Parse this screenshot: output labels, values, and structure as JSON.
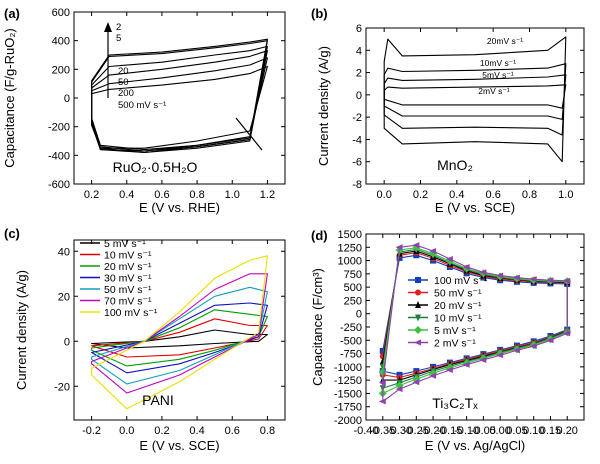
{
  "chart_data": [
    {
      "type": "line",
      "panel_label": "(a)",
      "xlabel": "E (V vs. RHE)",
      "ylabel": "Capacitance (F/g-RuO₂)",
      "xlim": [
        0.1,
        1.3
      ],
      "ylim": [
        -600,
        600
      ],
      "xticks": [
        0.2,
        0.4,
        0.6,
        0.8,
        1.0,
        1.2
      ],
      "yticks": [
        -600,
        -400,
        -200,
        0,
        200,
        400,
        600
      ],
      "annotation": "RuO₂·0.5H₂O",
      "scan_rate_labels": [
        "2",
        "5",
        "20",
        "50",
        "200",
        "500 mV s⁻¹"
      ],
      "series": [
        {
          "scan_rate": "2",
          "x": [
            0.2,
            0.3,
            0.6,
            0.9,
            1.1,
            1.2,
            1.1,
            0.8,
            0.5,
            0.25,
            0.2
          ],
          "y": [
            120,
            300,
            320,
            360,
            390,
            410,
            -280,
            -330,
            -360,
            -330,
            -140
          ]
        },
        {
          "scan_rate": "5",
          "x": [
            0.2,
            0.3,
            0.6,
            0.9,
            1.1,
            1.2,
            1.1,
            0.8,
            0.5,
            0.25,
            0.2
          ],
          "y": [
            110,
            290,
            310,
            350,
            380,
            400,
            -290,
            -340,
            -370,
            -340,
            -150
          ]
        },
        {
          "scan_rate": "20",
          "x": [
            0.2,
            0.3,
            0.6,
            0.9,
            1.1,
            1.2,
            1.1,
            0.8,
            0.5,
            0.25,
            0.2
          ],
          "y": [
            90,
            220,
            250,
            300,
            330,
            360,
            -300,
            -350,
            -380,
            -350,
            -160
          ]
        },
        {
          "scan_rate": "50",
          "x": [
            0.2,
            0.3,
            0.6,
            0.9,
            1.1,
            1.2,
            1.1,
            0.8,
            0.5,
            0.25,
            0.2
          ],
          "y": [
            70,
            160,
            200,
            250,
            290,
            330,
            -290,
            -340,
            -380,
            -360,
            -170
          ]
        },
        {
          "scan_rate": "200",
          "x": [
            0.2,
            0.3,
            0.6,
            0.9,
            1.1,
            1.2,
            1.1,
            0.8,
            0.5,
            0.25,
            0.2
          ],
          "y": [
            50,
            100,
            140,
            190,
            230,
            280,
            -270,
            -330,
            -370,
            -360,
            -180
          ]
        },
        {
          "scan_rate": "500",
          "x": [
            0.2,
            0.3,
            0.6,
            0.9,
            1.1,
            1.2,
            1.1,
            0.8,
            0.5,
            0.25,
            0.2
          ],
          "y": [
            30,
            60,
            90,
            130,
            170,
            220,
            -230,
            -300,
            -350,
            -350,
            -190
          ]
        }
      ]
    },
    {
      "type": "line",
      "panel_label": "(b)",
      "xlabel": "E (V vs. SCE)",
      "ylabel": "Current density (A/g)",
      "xlim": [
        -0.1,
        1.1
      ],
      "ylim": [
        -8,
        6
      ],
      "xticks": [
        0.0,
        0.2,
        0.4,
        0.6,
        0.8,
        1.0
      ],
      "yticks": [
        -8,
        -6,
        -4,
        -2,
        0,
        2,
        4,
        6
      ],
      "annotation": "MnO₂",
      "series": [
        {
          "name": "20mV s⁻¹",
          "x": [
            0.0,
            0.02,
            0.1,
            0.5,
            0.9,
            1.0,
            0.98,
            0.9,
            0.5,
            0.1,
            0.0
          ],
          "y": [
            3.0,
            5.0,
            3.5,
            3.6,
            4.0,
            5.2,
            -6.0,
            -4.4,
            -4.2,
            -4.4,
            -3.0
          ]
        },
        {
          "name": "10mV s⁻¹",
          "x": [
            0.0,
            0.02,
            0.1,
            0.5,
            0.9,
            1.0,
            0.98,
            0.9,
            0.5,
            0.1,
            0.0
          ],
          "y": [
            1.8,
            2.4,
            2.1,
            2.2,
            2.4,
            2.8,
            -3.6,
            -3.0,
            -2.9,
            -3.0,
            -1.8
          ]
        },
        {
          "name": "5mV s⁻¹",
          "x": [
            0.0,
            0.02,
            0.1,
            0.5,
            0.9,
            1.0,
            0.98,
            0.9,
            0.5,
            0.1,
            0.0
          ],
          "y": [
            1.0,
            1.5,
            1.3,
            1.4,
            1.6,
            1.8,
            -2.2,
            -1.9,
            -1.9,
            -1.9,
            -1.0
          ]
        },
        {
          "name": "2mV s⁻¹",
          "x": [
            0.0,
            0.02,
            0.1,
            0.5,
            0.9,
            1.0,
            0.98,
            0.9,
            0.5,
            0.1,
            0.0
          ],
          "y": [
            0.4,
            0.7,
            0.6,
            0.7,
            0.8,
            0.9,
            -1.2,
            -0.9,
            -0.9,
            -0.9,
            -0.4
          ]
        }
      ]
    },
    {
      "type": "line",
      "panel_label": "(c)",
      "xlabel": "E (V vs. SCE)",
      "ylabel": "Current density (A/g)",
      "xlim": [
        -0.3,
        0.9
      ],
      "ylim": [
        -35,
        45
      ],
      "xticks": [
        -0.2,
        0.0,
        0.2,
        0.4,
        0.6,
        0.8
      ],
      "yticks": [
        -20,
        0,
        20,
        40
      ],
      "annotation": "PANI",
      "series": [
        {
          "name": "5 mV s⁻¹",
          "color": "#000000",
          "x": [
            -0.2,
            0.1,
            0.3,
            0.5,
            0.7,
            0.8,
            0.75,
            0.5,
            0.3,
            0.0,
            -0.2
          ],
          "y": [
            -1,
            0,
            2,
            5,
            3,
            3,
            0,
            -1,
            -2,
            -3,
            -1
          ]
        },
        {
          "name": "10 mV s⁻¹",
          "color": "#e00000",
          "x": [
            -0.2,
            0.1,
            0.3,
            0.5,
            0.7,
            0.8,
            0.75,
            0.5,
            0.3,
            0.0,
            -0.2
          ],
          "y": [
            -2,
            0,
            4,
            10,
            7,
            7,
            1,
            -3,
            -6,
            -7,
            -2
          ]
        },
        {
          "name": "20 mV s⁻¹",
          "color": "#00a000",
          "x": [
            -0.2,
            0.1,
            0.3,
            0.5,
            0.7,
            0.8,
            0.75,
            0.5,
            0.3,
            0.0,
            -0.2
          ],
          "y": [
            -3,
            0,
            6,
            14,
            12,
            11,
            2,
            -4,
            -8,
            -11,
            -4
          ]
        },
        {
          "name": "30 mV s⁻¹",
          "color": "#1010c0",
          "x": [
            -0.2,
            0.1,
            0.3,
            0.5,
            0.7,
            0.8,
            0.75,
            0.5,
            0.3,
            0.0,
            -0.2
          ],
          "y": [
            -5,
            0,
            8,
            16,
            17,
            16,
            2,
            -5,
            -10,
            -14,
            -5
          ]
        },
        {
          "name": "50 mV s⁻¹",
          "color": "#10a0c0",
          "x": [
            -0.2,
            0.1,
            0.3,
            0.5,
            0.7,
            0.8,
            0.75,
            0.5,
            0.3,
            0.0,
            -0.2
          ],
          "y": [
            -7,
            0,
            10,
            20,
            24,
            22,
            3,
            -6,
            -13,
            -19,
            -8
          ]
        },
        {
          "name": "70 mV s⁻¹",
          "color": "#c000c0",
          "x": [
            -0.2,
            0.1,
            0.3,
            0.5,
            0.7,
            0.8,
            0.75,
            0.5,
            0.3,
            0.0,
            -0.2
          ],
          "y": [
            -9,
            0,
            11,
            23,
            30,
            30,
            3,
            -7,
            -15,
            -23,
            -10
          ]
        },
        {
          "name": "100 mV s⁻¹",
          "color": "#e8e000",
          "x": [
            -0.2,
            0.1,
            0.3,
            0.5,
            0.7,
            0.8,
            0.75,
            0.5,
            0.3,
            0.0,
            -0.2
          ],
          "y": [
            -12,
            0,
            13,
            28,
            36,
            38,
            4,
            -8,
            -18,
            -30,
            -15
          ]
        }
      ]
    },
    {
      "type": "line",
      "panel_label": "(d)",
      "xlabel": "E (V vs. Ag/AgCl)",
      "ylabel": "Capacitance (F/cm³)",
      "xlim": [
        -0.4,
        0.25
      ],
      "ylim": [
        -2000,
        1500
      ],
      "xticks": [
        -0.4,
        -0.35,
        -0.3,
        -0.25,
        -0.2,
        -0.15,
        -0.1,
        -0.05,
        0.0,
        0.05,
        0.1,
        0.15,
        0.2
      ],
      "yticks": [
        -2000,
        -1750,
        -1500,
        -1250,
        -1000,
        -750,
        -500,
        -250,
        0,
        250,
        500,
        750,
        1000,
        1250,
        1500
      ],
      "annotation": "Ti₃C₂Tₓ",
      "series": [
        {
          "name": "100 mV s⁻¹",
          "color": "#1040c0",
          "marker": "square",
          "x": [
            -0.35,
            -0.3,
            -0.25,
            -0.2,
            -0.15,
            -0.1,
            -0.05,
            0.0,
            0.05,
            0.1,
            0.15,
            0.2,
            0.2,
            0.15,
            0.1,
            0.05,
            0.0,
            -0.05,
            -0.1,
            -0.15,
            -0.2,
            -0.25,
            -0.3,
            -0.35
          ],
          "y": [
            -700,
            1050,
            1100,
            1000,
            880,
            760,
            680,
            630,
            600,
            580,
            570,
            560,
            -300,
            -420,
            -520,
            -600,
            -680,
            -760,
            -840,
            -920,
            -1000,
            -1080,
            -1150,
            -1080
          ]
        },
        {
          "name": "50 mV s⁻¹",
          "color": "#e02020",
          "marker": "circle",
          "x": [
            -0.35,
            -0.3,
            -0.25,
            -0.2,
            -0.15,
            -0.1,
            -0.05,
            0.0,
            0.05,
            0.1,
            0.15,
            0.2,
            0.2,
            0.15,
            0.1,
            0.05,
            0.0,
            -0.05,
            -0.1,
            -0.15,
            -0.2,
            -0.25,
            -0.3,
            -0.35
          ],
          "y": [
            -800,
            1100,
            1150,
            1040,
            910,
            790,
            700,
            650,
            620,
            600,
            590,
            580,
            -320,
            -440,
            -540,
            -620,
            -700,
            -780,
            -860,
            -940,
            -1030,
            -1120,
            -1200,
            -1150
          ]
        },
        {
          "name": "20 mV s⁻¹",
          "color": "#000000",
          "marker": "triangle-up",
          "x": [
            -0.35,
            -0.3,
            -0.25,
            -0.2,
            -0.15,
            -0.1,
            -0.05,
            0.0,
            0.05,
            0.1,
            0.15,
            0.2,
            0.2,
            0.15,
            0.1,
            0.05,
            0.0,
            -0.05,
            -0.1,
            -0.15,
            -0.2,
            -0.25,
            -0.3,
            -0.35
          ],
          "y": [
            -900,
            1130,
            1180,
            1070,
            940,
            810,
            720,
            670,
            640,
            610,
            600,
            590,
            -330,
            -450,
            -560,
            -640,
            -720,
            -800,
            -880,
            -960,
            -1050,
            -1150,
            -1250,
            -1250
          ]
        },
        {
          "name": "10 mV s⁻¹",
          "color": "#208040",
          "marker": "triangle-down",
          "x": [
            -0.35,
            -0.3,
            -0.25,
            -0.2,
            -0.15,
            -0.1,
            -0.05,
            0.0,
            0.05,
            0.1,
            0.15,
            0.2,
            0.2,
            0.15,
            0.1,
            0.05,
            0.0,
            -0.05,
            -0.1,
            -0.15,
            -0.2,
            -0.25,
            -0.3,
            -0.35
          ],
          "y": [
            -1000,
            1160,
            1210,
            1100,
            960,
            830,
            740,
            680,
            650,
            620,
            610,
            600,
            -340,
            -460,
            -570,
            -650,
            -730,
            -820,
            -900,
            -990,
            -1080,
            -1190,
            -1300,
            -1400
          ]
        },
        {
          "name": "5 mV s⁻¹",
          "color": "#40c040",
          "marker": "diamond",
          "x": [
            -0.35,
            -0.3,
            -0.25,
            -0.2,
            -0.15,
            -0.1,
            -0.05,
            0.0,
            0.05,
            0.1,
            0.15,
            0.2,
            0.2,
            0.15,
            0.1,
            0.05,
            0.0,
            -0.05,
            -0.1,
            -0.15,
            -0.2,
            -0.25,
            -0.3,
            -0.35
          ],
          "y": [
            -1100,
            1200,
            1240,
            1130,
            990,
            850,
            760,
            700,
            660,
            630,
            620,
            610,
            -350,
            -480,
            -590,
            -670,
            -750,
            -840,
            -930,
            -1020,
            -1120,
            -1230,
            -1350,
            -1500
          ]
        },
        {
          "name": "2 mV s⁻¹",
          "color": "#9040b0",
          "marker": "triangle-left",
          "x": [
            -0.35,
            -0.3,
            -0.25,
            -0.2,
            -0.15,
            -0.1,
            -0.05,
            0.0,
            0.05,
            0.1,
            0.15,
            0.2,
            0.2,
            0.15,
            0.1,
            0.05,
            0.0,
            -0.05,
            -0.1,
            -0.15,
            -0.2,
            -0.25,
            -0.3,
            -0.35
          ],
          "y": [
            -1300,
            1250,
            1290,
            1180,
            1030,
            880,
            780,
            720,
            680,
            650,
            630,
            620,
            -370,
            -500,
            -610,
            -690,
            -780,
            -870,
            -960,
            -1060,
            -1170,
            -1290,
            -1420,
            -1650
          ]
        }
      ]
    }
  ]
}
